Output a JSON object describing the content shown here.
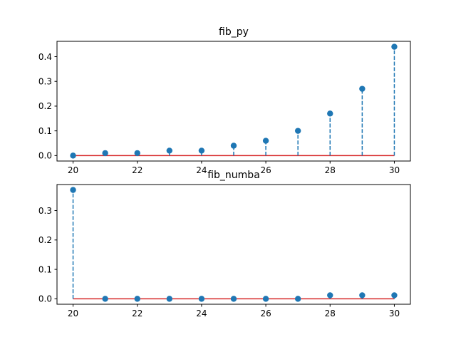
{
  "colors": {
    "marker": "#1f77b4",
    "stem": "#1f77b4",
    "baseline": "#d62728",
    "axes": "#000000",
    "background": "#ffffff"
  },
  "chart_data": [
    {
      "type": "stem",
      "title": "fib_py",
      "xlabel": "",
      "ylabel": "",
      "x": [
        20,
        21,
        22,
        23,
        24,
        25,
        26,
        27,
        28,
        29,
        30
      ],
      "values": [
        0.0,
        0.01,
        0.01,
        0.02,
        0.02,
        0.04,
        0.06,
        0.1,
        0.17,
        0.27,
        0.44
      ],
      "xlim": [
        19.5,
        30.5
      ],
      "ylim": [
        -0.022,
        0.462
      ],
      "xticks": [
        20,
        22,
        24,
        26,
        28,
        30
      ],
      "xtick_labels": [
        "20",
        "22",
        "24",
        "26",
        "28",
        "30"
      ],
      "yticks": [
        0.0,
        0.1,
        0.2,
        0.3,
        0.4
      ],
      "ytick_labels": [
        "0.0",
        "0.1",
        "0.2",
        "0.3",
        "0.4"
      ],
      "grid": false,
      "legend": "none"
    },
    {
      "type": "stem",
      "title": "fib_numba",
      "xlabel": "",
      "ylabel": "",
      "x": [
        20,
        21,
        22,
        23,
        24,
        25,
        26,
        27,
        28,
        29,
        30
      ],
      "values": [
        0.37,
        0.0,
        0.0,
        0.0,
        0.0,
        0.0,
        0.0,
        0.0,
        0.012,
        0.012,
        0.012
      ],
      "xlim": [
        19.5,
        30.5
      ],
      "ylim": [
        -0.0185,
        0.3885
      ],
      "xticks": [
        20,
        22,
        24,
        26,
        28,
        30
      ],
      "xtick_labels": [
        "20",
        "22",
        "24",
        "26",
        "28",
        "30"
      ],
      "yticks": [
        0.0,
        0.1,
        0.2,
        0.3
      ],
      "ytick_labels": [
        "0.0",
        "0.1",
        "0.2",
        "0.3"
      ],
      "grid": false,
      "legend": "none"
    }
  ]
}
